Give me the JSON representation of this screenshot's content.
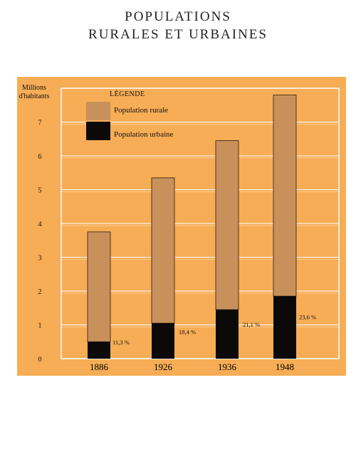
{
  "header": {
    "title_line1": "POPULATIONS",
    "title_line2": "RURALES ET URBAINES"
  },
  "chart_data": {
    "type": "bar",
    "stacked": true,
    "ylabel_line1": "Millions",
    "ylabel_line2": "d'habitants",
    "ylim": [
      0,
      7.8
    ],
    "yticks": [
      0,
      1,
      2,
      3,
      4,
      5,
      6,
      7
    ],
    "categories": [
      "1886",
      "1926",
      "1936",
      "1948"
    ],
    "series": [
      {
        "name": "Population urbaine",
        "values": [
          0.5,
          1.05,
          1.45,
          1.85
        ],
        "color": "#0c0a08"
      },
      {
        "name": "Population rurale",
        "values": [
          3.25,
          4.3,
          5.0,
          5.95
        ],
        "color": "#c8915c"
      }
    ],
    "percent_labels": [
      "11,3 %",
      "18,4 %",
      "21,1 %",
      "23,6 %"
    ],
    "legend_title": "LÉGENDE",
    "legend_position": "top-left",
    "grid": true,
    "background_color": "#f6ad55"
  }
}
